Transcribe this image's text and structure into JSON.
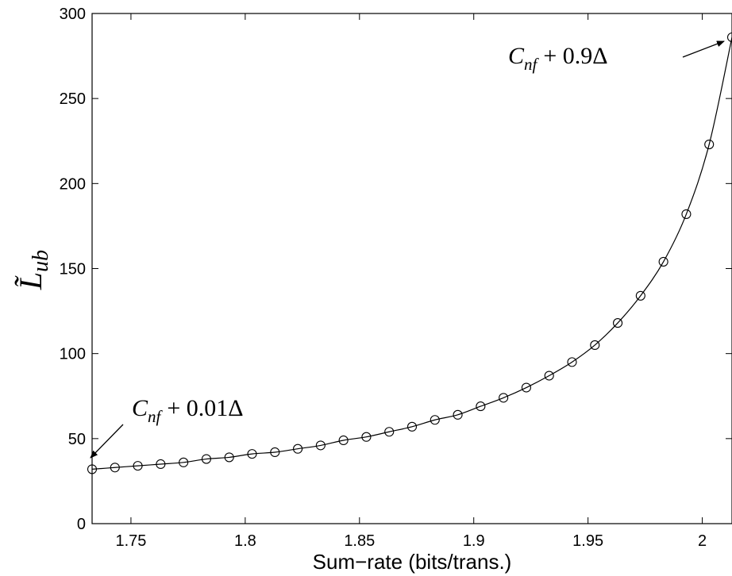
{
  "chart_data": {
    "type": "line",
    "title": "",
    "xlabel": "Sum−rate (bits/trans.)",
    "ylabel": {
      "symbol": "L̃",
      "subscript": "ub"
    },
    "xlim": [
      1.733,
      2.013
    ],
    "ylim": [
      0,
      300
    ],
    "x_ticks": [
      1.75,
      1.8,
      1.85,
      1.9,
      1.95,
      2
    ],
    "x_tick_labels": [
      "1.75",
      "1.8",
      "1.85",
      "1.9",
      "1.95",
      "2"
    ],
    "y_ticks": [
      0,
      50,
      100,
      150,
      200,
      250,
      300
    ],
    "y_tick_labels": [
      "0",
      "50",
      "100",
      "150",
      "200",
      "250",
      "300"
    ],
    "grid": false,
    "marker": "circle",
    "line_color": "#000000",
    "series": [
      {
        "x": [
          1.733,
          1.743,
          1.753,
          1.763,
          1.773,
          1.783,
          1.793,
          1.803,
          1.813,
          1.823,
          1.833,
          1.843,
          1.853,
          1.863,
          1.873,
          1.883,
          1.893,
          1.903,
          1.913,
          1.923,
          1.933,
          1.943,
          1.953,
          1.963,
          1.973,
          1.983,
          1.993,
          2.003,
          2.013
        ],
        "values": [
          32,
          33,
          34,
          35,
          36,
          38,
          39,
          41,
          42,
          44,
          46,
          49,
          51,
          54,
          57,
          61,
          64,
          69,
          74,
          80,
          87,
          95,
          105,
          118,
          134,
          154,
          182,
          223,
          286
        ]
      }
    ],
    "annotations": [
      {
        "base": "C",
        "subscript": "nf",
        "rest": "+ 0.01Δ",
        "points_to": [
          1.733,
          32
        ]
      },
      {
        "base": "C",
        "subscript": "nf",
        "rest": "+ 0.9Δ",
        "points_to": [
          2.013,
          286
        ]
      }
    ]
  }
}
